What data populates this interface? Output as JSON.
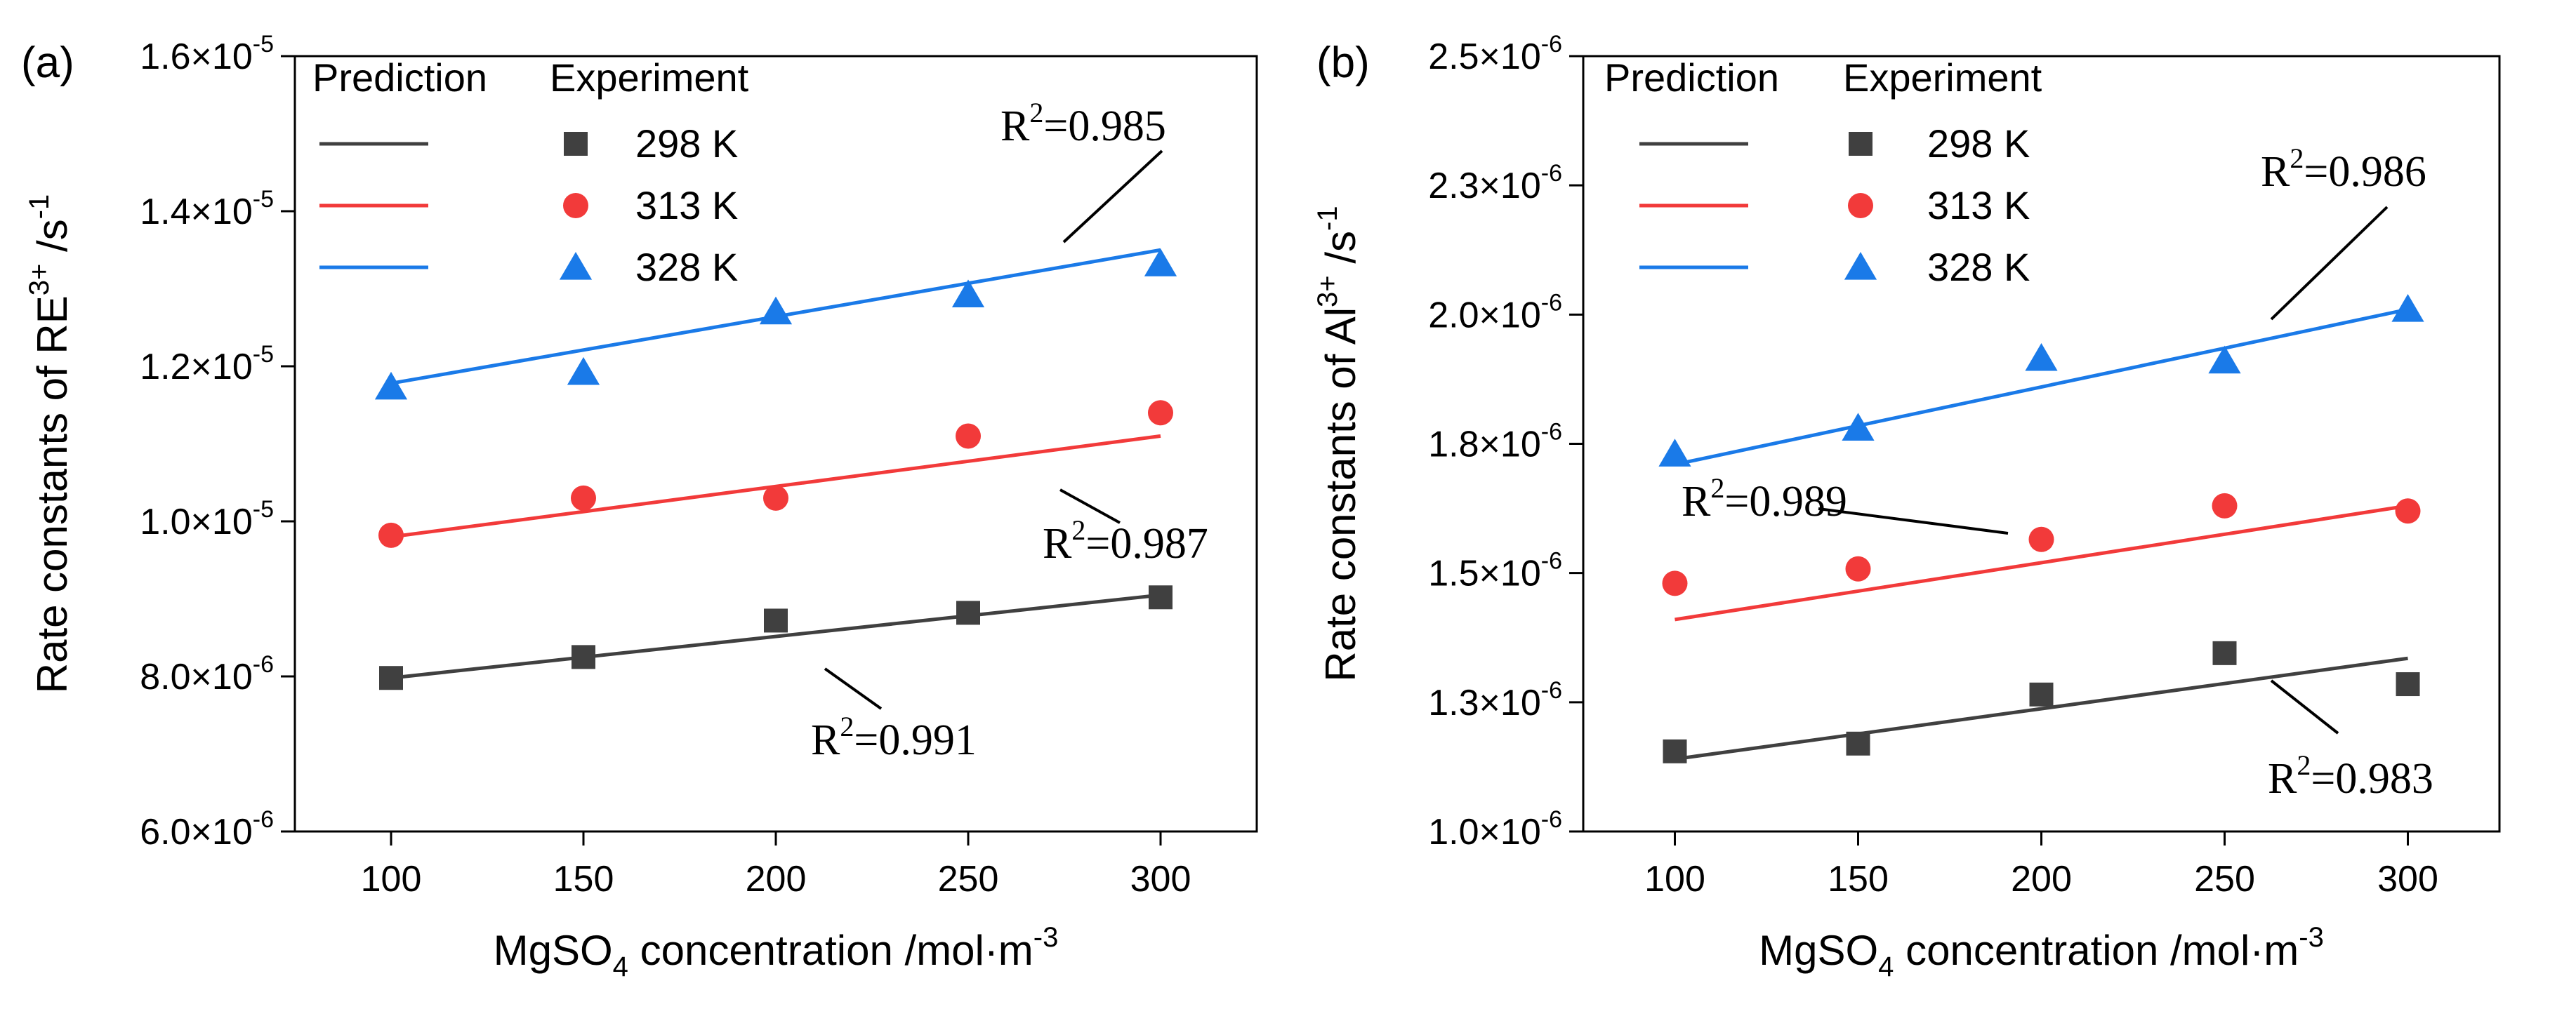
{
  "colors": {
    "axis": "#000000",
    "s298": "#404040",
    "s313": "#f23a3a",
    "s328": "#1a7ae8"
  },
  "chart_data": [
    {
      "panel_label": "(a)",
      "type": "scatter",
      "xlabel": {
        "base": "MgSO",
        "sub": "4",
        "rest": " concentration /mol·m",
        "sup": "-3"
      },
      "ylabel": {
        "base": "Rate constants of RE",
        "sup1": "3+",
        "mid": " /s",
        "sup2": "-1"
      },
      "xlim": [
        75,
        325
      ],
      "ylim": [
        6e-06,
        1.6e-05
      ],
      "xticks": [
        100,
        150,
        200,
        250,
        300
      ],
      "xtick_labels": [
        "100",
        "150",
        "200",
        "250",
        "300"
      ],
      "yticks": [
        6e-06,
        8e-06,
        1e-05,
        1.2e-05,
        1.4e-05,
        1.6e-05
      ],
      "ytick_labels": [
        {
          "m": "6.0×10",
          "e": "-6"
        },
        {
          "m": "8.0×10",
          "e": "-6"
        },
        {
          "m": "1.0×10",
          "e": "-5"
        },
        {
          "m": "1.2×10",
          "e": "-5"
        },
        {
          "m": "1.4×10",
          "e": "-5"
        },
        {
          "m": "1.6×10",
          "e": "-5"
        }
      ],
      "legend": {
        "placement": "top-left",
        "col_prediction": "Prediction",
        "col_experiment": "Experiment"
      },
      "series": [
        {
          "name": "298 K",
          "key": "s298",
          "marker": "square",
          "x": [
            100,
            150,
            200,
            250,
            300
          ],
          "y": [
            7.98e-06,
            8.25e-06,
            8.72e-06,
            8.82e-06,
            9.02e-06
          ],
          "fit": [
            7.98e-06,
            9.05e-06
          ],
          "r2": "=0.991"
        },
        {
          "name": "313 K",
          "key": "s313",
          "marker": "circle",
          "x": [
            100,
            150,
            200,
            250,
            300
          ],
          "y": [
            9.82e-06,
            1.03e-05,
            1.03e-05,
            1.11e-05,
            1.14e-05
          ],
          "fit": [
            9.8e-06,
            1.11e-05
          ],
          "r2": "=0.987"
        },
        {
          "name": "328 K",
          "key": "s328",
          "marker": "triangle",
          "x": [
            100,
            150,
            200,
            250,
            300
          ],
          "y": [
            1.173e-05,
            1.192e-05,
            1.27e-05,
            1.292e-05,
            1.332e-05
          ],
          "fit": [
            1.178e-05,
            1.35e-05
          ],
          "r2": "=0.985"
        }
      ]
    },
    {
      "panel_label": "(b)",
      "type": "scatter",
      "xlabel": {
        "base": "MgSO",
        "sub": "4",
        "rest": " concentration /mol·m",
        "sup": "-3"
      },
      "ylabel": {
        "base": "Rate constants of Al",
        "sup1": "3+",
        "mid": " /s",
        "sup2": "-1"
      },
      "xlim": [
        75,
        325
      ],
      "ylim": [
        1e-06,
        2.5e-06
      ],
      "xticks": [
        100,
        150,
        200,
        250,
        300
      ],
      "xtick_labels": [
        "100",
        "150",
        "200",
        "250",
        "300"
      ],
      "yticks": [
        1e-06,
        1.25e-06,
        1.5e-06,
        1.75e-06,
        2e-06,
        2.25e-06,
        2.5e-06
      ],
      "ytick_labels": [
        {
          "m": "1.0×10",
          "e": "-6"
        },
        {
          "m": "1.3×10",
          "e": "-6"
        },
        {
          "m": "1.5×10",
          "e": "-6"
        },
        {
          "m": "1.8×10",
          "e": "-6"
        },
        {
          "m": "2.0×10",
          "e": "-6"
        },
        {
          "m": "2.3×10",
          "e": "-6"
        },
        {
          "m": "2.5×10",
          "e": "-6"
        }
      ],
      "legend": {
        "placement": "top-left",
        "col_prediction": "Prediction",
        "col_experiment": "Experiment"
      },
      "series": [
        {
          "name": "298 K",
          "key": "s298",
          "marker": "square",
          "x": [
            100,
            150,
            200,
            250,
            300
          ],
          "y": [
            1.155e-06,
            1.17e-06,
            1.265e-06,
            1.345e-06,
            1.285e-06
          ],
          "fit": [
            1.14e-06,
            1.335e-06
          ],
          "r2": "=0.983"
        },
        {
          "name": "313 K",
          "key": "s313",
          "marker": "circle",
          "x": [
            100,
            150,
            200,
            250,
            300
          ],
          "y": [
            1.48e-06,
            1.508e-06,
            1.565e-06,
            1.63e-06,
            1.62e-06
          ],
          "fit": [
            1.41e-06,
            1.63e-06
          ],
          "r2": "=0.989"
        },
        {
          "name": "328 K",
          "key": "s328",
          "marker": "triangle",
          "x": [
            100,
            150,
            200,
            250,
            300
          ],
          "y": [
            1.73e-06,
            1.78e-06,
            1.915e-06,
            1.91e-06,
            2.01e-06
          ],
          "fit": [
            1.71e-06,
            2.01e-06
          ],
          "r2": "=0.986"
        }
      ]
    }
  ]
}
